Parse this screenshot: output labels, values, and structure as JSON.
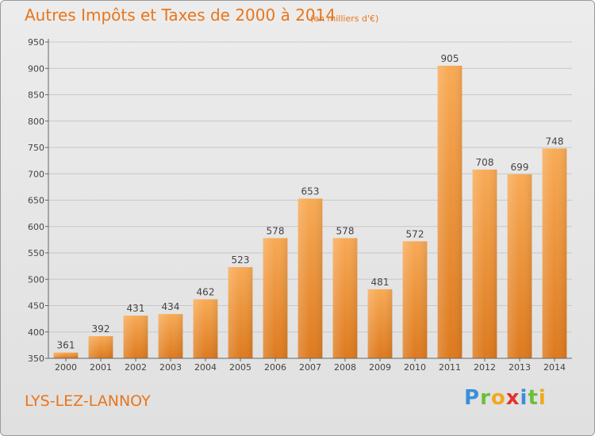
{
  "header": {
    "title": "Autres Impôts et Taxes de 2000 à 2014",
    "subtitle": "(en milliers d'€)"
  },
  "footer": {
    "commune": "LYS-LEZ-LANNOY",
    "brand_letters": [
      {
        "char": "P",
        "color": "#3a8fd8"
      },
      {
        "char": "r",
        "color": "#6cbf3a"
      },
      {
        "char": "o",
        "color": "#f2a81d"
      },
      {
        "char": "x",
        "color": "#e5322c"
      },
      {
        "char": "i",
        "color": "#3a8fd8"
      },
      {
        "char": "t",
        "color": "#6cbf3a"
      },
      {
        "char": "i",
        "color": "#f2a81d"
      }
    ]
  },
  "colors": {
    "accent": "#e8761c",
    "bar_light": "#f8aa55",
    "bar_dark": "#e07f22"
  },
  "chart_data": {
    "type": "bar",
    "title": "Autres Impôts et Taxes de 2000 à 2014",
    "subtitle": "(en milliers d'€)",
    "categories": [
      "2000",
      "2001",
      "2002",
      "2003",
      "2004",
      "2005",
      "2006",
      "2007",
      "2008",
      "2009",
      "2010",
      "2011",
      "2012",
      "2013",
      "2014"
    ],
    "values": [
      361,
      392,
      431,
      434,
      462,
      523,
      578,
      653,
      578,
      481,
      572,
      905,
      708,
      699,
      748
    ],
    "ylim": [
      350,
      950
    ],
    "yticks": [
      350,
      400,
      450,
      500,
      550,
      600,
      650,
      700,
      750,
      800,
      850,
      900,
      950
    ],
    "grid": "horizontal",
    "xlabel": "",
    "ylabel": ""
  }
}
